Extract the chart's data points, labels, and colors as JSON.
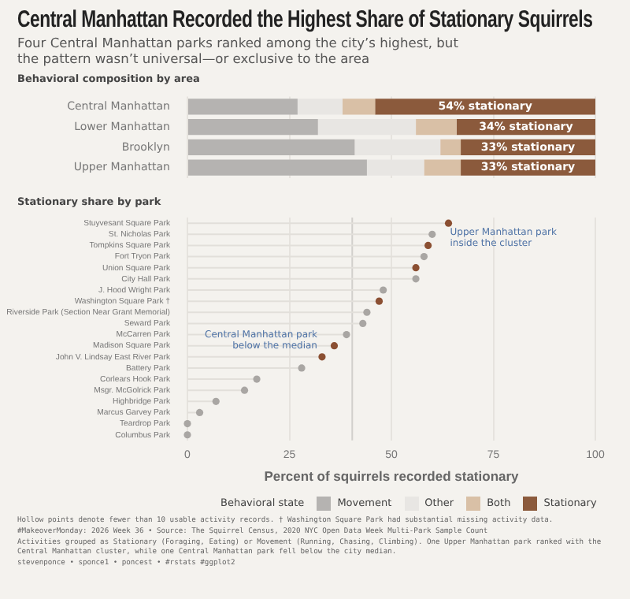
{
  "chart_data": [
    {
      "type": "bar",
      "orientation": "horizontal",
      "stacked": true,
      "xlim": [
        0,
        100
      ],
      "xticks": [
        0,
        25,
        50,
        75,
        100
      ],
      "grid": "x",
      "tick_labels": "y",
      "title": "Central Manhattan Recorded the Highest Share of Stationary Squirrels",
      "subtitle": "Four Central Manhattan parks ranked among the city’s highest, but the pattern wasn’t universal—or exclusive to the area",
      "annotations": [
        "Behavioral composition by area"
      ],
      "categories": [
        "Central Manhattan",
        "Lower Manhattan",
        "Brooklyn",
        "Upper Manhattan"
      ],
      "legend": "bottom",
      "legend_title": "Behavioral state",
      "series": [
        {
          "name": "Movement",
          "color": "#b5b3b1",
          "values": [
            27,
            32,
            41,
            44
          ]
        },
        {
          "name": "Other",
          "color": "#e8e6e3",
          "values": [
            11,
            24,
            21,
            14
          ]
        },
        {
          "name": "Both",
          "color": "#d9c0a6",
          "values": [
            8,
            10,
            5,
            9
          ]
        },
        {
          "name": "Stationary",
          "color": "#8b5a3c",
          "values": [
            54,
            34,
            33,
            33
          ],
          "value_labels": [
            "54% stationary",
            "34% stationary",
            "33% stationary",
            "33% stationary"
          ]
        }
      ]
    },
    {
      "type": "lollipop",
      "orientation": "horizontal",
      "title": "Stationary share by park",
      "xlabel": "Percent of squirrels recorded stationary",
      "xlim": [
        0,
        100
      ],
      "xticks": [
        0,
        25,
        50,
        75,
        100
      ],
      "grid": "x",
      "categories": [
        "Stuyvesant Square Park",
        "St. Nicholas Park",
        "Tompkins Square Park",
        "Fort Tryon Park",
        "Union Square Park",
        "City Hall Park",
        "J. Hood Wright Park",
        "Washington Square Park †",
        "Riverside Park (Section Near Grant Memorial)",
        "Seward Park",
        "McCarren Park",
        "Madison Square Park",
        "John V. Lindsay East River Park",
        "Battery Park",
        "Corlears Hook Park",
        "Msgr. McGolrick Park",
        "Highbridge Park",
        "Marcus Garvey Park",
        "Teardrop Park",
        "Columbus Park"
      ],
      "values": [
        64,
        60,
        59,
        58,
        56,
        56,
        48,
        47,
        44,
        43,
        39,
        36,
        33,
        28,
        17,
        14,
        7,
        3,
        0,
        0
      ],
      "colors": [
        "#8b4f32",
        "#a9a6a3",
        "#8b4f32",
        "#a9a6a3",
        "#8b4f32",
        "#a9a6a3",
        "#a9a6a3",
        "#8b4f32",
        "#a9a6a3",
        "#a9a6a3",
        "#a9a6a3",
        "#8b4f32",
        "#8b4f32",
        "#a9a6a3",
        "#a9a6a3",
        "#a9a6a3",
        "#a9a6a3",
        "#a9a6a3",
        "#a9a6a3",
        "#a9a6a3"
      ],
      "ref_lines": [
        {
          "axis": "x",
          "value": 40.4,
          "color": "#d2d0cc"
        }
      ],
      "annotations": [
        {
          "text": "Upper Manhattan park inside the cluster",
          "x": 64,
          "y": "Stuyvesant Square Park"
        },
        {
          "text": "Central Manhattan park below the median",
          "x": 33,
          "y": "John V. Lindsay East River Park"
        },
        "Hollow points denote fewer than 10 usable activity records. † Washington Square Park had substantial missing activity data.",
        "#MakeoverMonday: 2026 Week 36 • Source: The Squirrel Census, 2020 NYC Open Data Week Multi-Park Sample Count",
        "Activities grouped as Stationary (Foraging, Eating) or Movement (Running, Chasing, Climbing). One Upper Manhattan park ranked with the Central Manhattan cluster, while one Central Manhattan park fell below the city median.",
        "stevenponce • sponce1 • poncest • #rstats #ggplot2"
      ]
    }
  ]
}
